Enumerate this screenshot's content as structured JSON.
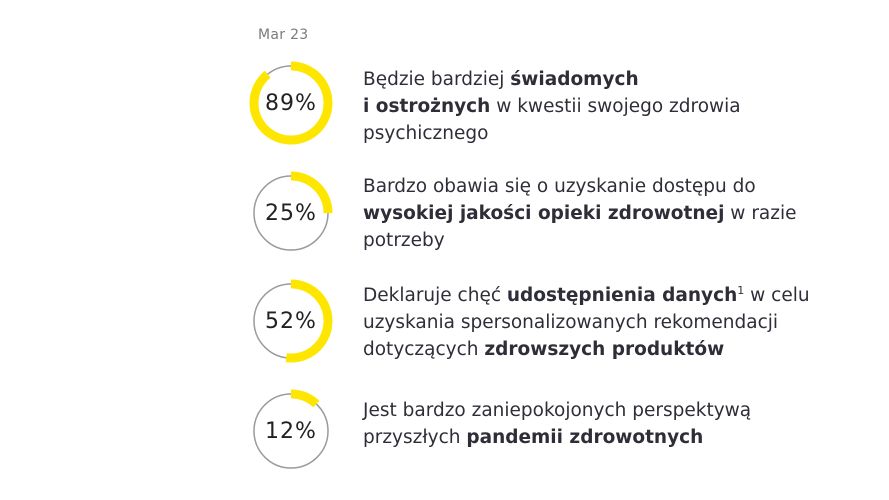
{
  "date_label": "Mar 23",
  "accent_color": "#ffe600",
  "track_color": "#9a9aa0",
  "chart_data": {
    "type": "donut",
    "items": [
      {
        "value": 89,
        "label": "89%",
        "text": [
          {
            "t": "Będzie bardziej ",
            "b": false
          },
          {
            "t": "świadomych",
            "b": true
          },
          {
            "t": "\n",
            "b": false
          },
          {
            "t": "i ostrożnych",
            "b": true
          },
          {
            "t": " w kwestii swojego zdrowia",
            "b": false
          },
          {
            "t": "\n",
            "b": false
          },
          {
            "t": "psychicznego",
            "b": false
          }
        ]
      },
      {
        "value": 25,
        "label": "25%",
        "text": [
          {
            "t": "Bardzo obawia się o uzyskanie dostępu do",
            "b": false
          },
          {
            "t": "\n",
            "b": false
          },
          {
            "t": "wysokiej jakości opieki zdrowotnej",
            "b": true
          },
          {
            "t": " w razie",
            "b": false
          },
          {
            "t": "\n",
            "b": false
          },
          {
            "t": "potrzeby",
            "b": false
          }
        ]
      },
      {
        "value": 52,
        "label": "52%",
        "text": [
          {
            "t": "Deklaruje chęć ",
            "b": false
          },
          {
            "t": "udostępnienia danych",
            "b": true
          },
          {
            "t": "1",
            "b": false,
            "sup": true
          },
          {
            "t": " w celu",
            "b": false
          },
          {
            "t": "\n",
            "b": false
          },
          {
            "t": "uzyskania spersonalizowanych rekomendacji",
            "b": false
          },
          {
            "t": "\n",
            "b": false
          },
          {
            "t": "dotyczących ",
            "b": false
          },
          {
            "t": "zdrowszych produktów",
            "b": true
          }
        ]
      },
      {
        "value": 12,
        "label": "12%",
        "text": [
          {
            "t": "Jest bardzo zaniepokojonych perspektywą",
            "b": false
          },
          {
            "t": "\n",
            "b": false
          },
          {
            "t": "przyszłych ",
            "b": false
          },
          {
            "t": "pandemii zdrowotnych",
            "b": true
          }
        ]
      }
    ]
  }
}
